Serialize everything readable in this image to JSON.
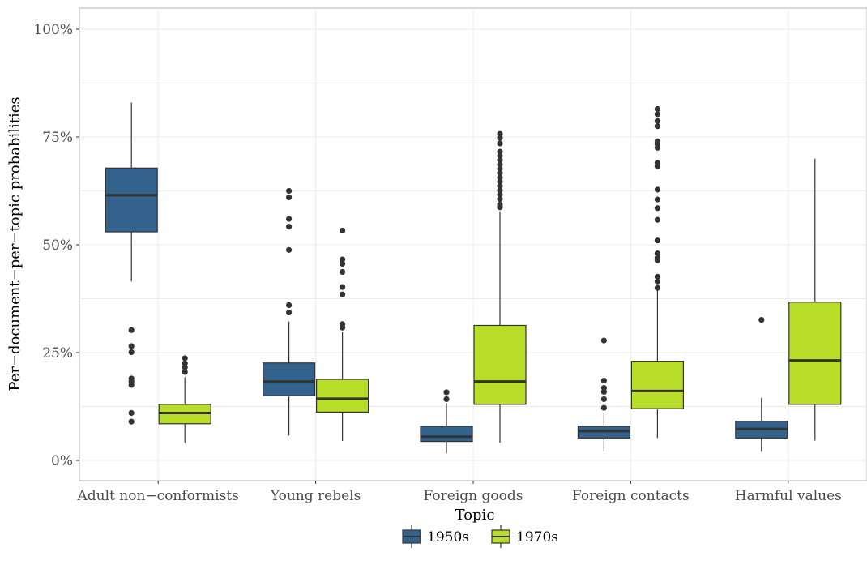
{
  "chart_data": {
    "type": "boxplot",
    "xlabel": "Topic",
    "ylabel": "Per−document−per−topic probabilities",
    "ylim": [
      -0.05,
      1.05
    ],
    "y_ticks": [
      0,
      0.25,
      0.5,
      0.75,
      1.0
    ],
    "y_tick_labels": [
      "0%",
      "25%",
      "50%",
      "75%",
      "100%"
    ],
    "grid": true,
    "legend_position": "bottom",
    "colors": {
      "1950s": "#33628d",
      "1970s": "#b8de29",
      "outline": "#333333",
      "grid": "#e3e3e3",
      "border": "#b3b3b3"
    },
    "categories": [
      "Adult non−conformists",
      "Young rebels",
      "Foreign goods",
      "Foreign contacts",
      "Harmful values"
    ],
    "series": [
      {
        "name": "1950s",
        "boxes": [
          {
            "whisker_low": 0.415,
            "q1": 0.53,
            "median": 0.615,
            "q3": 0.678,
            "whisker_high": 0.83,
            "outliers": [
              0.302,
              0.265,
              0.251,
              0.19,
              0.183,
              0.175,
              0.11,
              0.09
            ]
          },
          {
            "whisker_low": 0.058,
            "q1": 0.15,
            "median": 0.183,
            "q3": 0.226,
            "whisker_high": 0.322,
            "outliers": [
              0.625,
              0.61,
              0.56,
              0.542,
              0.488,
              0.36,
              0.343
            ]
          },
          {
            "whisker_low": 0.016,
            "q1": 0.044,
            "median": 0.055,
            "q3": 0.079,
            "whisker_high": 0.133,
            "outliers": [
              0.158,
              0.142
            ]
          },
          {
            "whisker_low": 0.02,
            "q1": 0.052,
            "median": 0.068,
            "q3": 0.079,
            "whisker_high": 0.112,
            "outliers": [
              0.278,
              0.185,
              0.168,
              0.159,
              0.142,
              0.122
            ]
          },
          {
            "whisker_low": 0.02,
            "q1": 0.052,
            "median": 0.073,
            "q3": 0.091,
            "whisker_high": 0.145,
            "outliers": [
              0.326
            ]
          }
        ]
      },
      {
        "name": "1970s",
        "boxes": [
          {
            "whisker_low": 0.041,
            "q1": 0.085,
            "median": 0.11,
            "q3": 0.13,
            "whisker_high": 0.193,
            "outliers": [
              0.237,
              0.225,
              0.216,
              0.205
            ]
          },
          {
            "whisker_low": 0.045,
            "q1": 0.112,
            "median": 0.143,
            "q3": 0.188,
            "whisker_high": 0.298,
            "outliers": [
              0.533,
              0.466,
              0.456,
              0.437,
              0.402,
              0.385,
              0.316,
              0.308
            ]
          },
          {
            "whisker_low": 0.041,
            "q1": 0.13,
            "median": 0.183,
            "q3": 0.313,
            "whisker_high": 0.578,
            "outliers": [
              0.757,
              0.748,
              0.735,
              0.716,
              0.706,
              0.696,
              0.686,
              0.676,
              0.666,
              0.656,
              0.646,
              0.636,
              0.626,
              0.616,
              0.606,
              0.593,
              0.587
            ]
          },
          {
            "whisker_low": 0.052,
            "q1": 0.12,
            "median": 0.161,
            "q3": 0.23,
            "whisker_high": 0.394,
            "outliers": [
              0.815,
              0.803,
              0.787,
              0.775,
              0.74,
              0.733,
              0.725,
              0.69,
              0.682,
              0.628,
              0.605,
              0.585,
              0.558,
              0.51,
              0.48,
              0.47,
              0.464,
              0.426,
              0.415,
              0.4
            ]
          },
          {
            "whisker_low": 0.046,
            "q1": 0.13,
            "median": 0.232,
            "q3": 0.367,
            "whisker_high": 0.7,
            "outliers": []
          }
        ]
      }
    ]
  }
}
